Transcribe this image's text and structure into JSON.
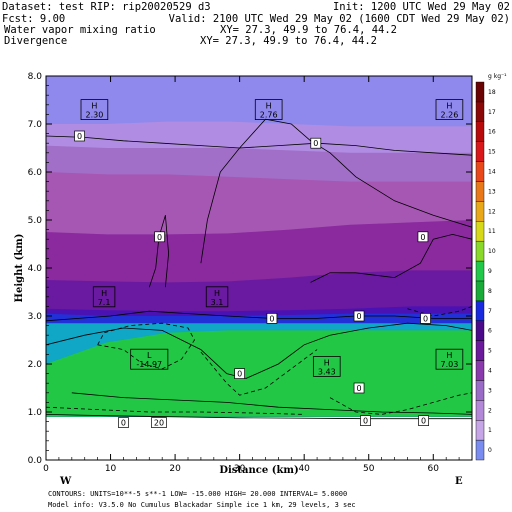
{
  "header": {
    "dataset": "Dataset: test   RIP: rip20020529 d3",
    "init": "Init: 1200 UTC Wed 29 May 02",
    "fcst": "Fcst:     9.00",
    "valid": "Valid: 2100 UTC Wed 29 May 02 (1600 CDT Wed 29 May 02)",
    "field1": "Water vapor mixing ratio",
    "field1_xy": "XY=  27.3, 49.9 to  76.4, 44.2",
    "field2": "Divergence",
    "field2_xy": "XY=  27.3, 49.9 to  76.4, 44.2"
  },
  "footer": {
    "line1": "CONTOURS:  UNITS=10**-5 s**-1   LOW= -15.000       HIGH=  20.000      INTERVAL=   5.0000",
    "line2": "Model info: V3.5.0 No Cumulus Blackadar  Simple ice    1 km,  29 levels,    3 sec"
  },
  "chart_data": {
    "type": "contour-cross-section",
    "xlabel": "Distance (km)",
    "ylabel": "Height (km)",
    "xlim": [
      0,
      66
    ],
    "ylim": [
      0,
      8
    ],
    "x_ticks": [
      "0",
      "10",
      "20",
      "30",
      "40",
      "50",
      "60"
    ],
    "y_ticks": [
      "0.0",
      "1.0",
      "2.0",
      "3.0",
      "4.0",
      "5.0",
      "6.0",
      "7.0",
      "8.0"
    ],
    "west_label": "W",
    "east_label": "E",
    "ground_height": 0.9,
    "colorbar": {
      "unit": "g kg⁻¹",
      "levels": [
        "0",
        "1",
        "2",
        "3",
        "4",
        "5",
        "6",
        "7",
        "8",
        "9",
        "10",
        "11",
        "12",
        "13",
        "14",
        "15",
        "16",
        "17",
        "18"
      ],
      "colors": [
        "#7b8cf0",
        "#c6a6e6",
        "#b488d8",
        "#9a6cc8",
        "#8a3aac",
        "#6a1a9a",
        "#4a0a8a",
        "#1a2ade",
        "#1aaa3a",
        "#22c84a",
        "#8ad82a",
        "#d8d81a",
        "#e8a81a",
        "#e8781a",
        "#e8481a",
        "#d8181a",
        "#b80a0a",
        "#8a0808",
        "#6a0404"
      ]
    },
    "bands": [
      {
        "level": "0",
        "color": "#8f89ee",
        "top": [
          8,
          8,
          8,
          8,
          8,
          8,
          8,
          8
        ]
      },
      {
        "level": "1",
        "color": "#b08de2",
        "top": [
          7.0,
          7.0,
          7.05,
          7.05,
          7.0,
          6.95,
          6.95,
          6.95
        ]
      },
      {
        "level": "2",
        "color": "#a16fc8",
        "top": [
          6.55,
          6.5,
          6.5,
          6.5,
          6.45,
          6.4,
          6.4,
          6.4
        ]
      },
      {
        "level": "3",
        "color": "#a657b3",
        "top": [
          6.0,
          5.95,
          5.95,
          5.9,
          5.85,
          5.8,
          5.8,
          5.8
        ]
      },
      {
        "level": "4",
        "color": "#8a2a9e",
        "top": [
          4.75,
          4.7,
          4.7,
          4.72,
          4.8,
          4.9,
          4.95,
          5.0
        ]
      },
      {
        "level": "5",
        "color": "#6a1aa0",
        "top": [
          3.75,
          3.72,
          3.7,
          3.72,
          3.8,
          3.9,
          3.95,
          3.95
        ]
      },
      {
        "level": "6",
        "color": "#4a12b2",
        "top": [
          3.15,
          3.12,
          3.1,
          3.1,
          3.12,
          3.15,
          3.2,
          3.2
        ]
      },
      {
        "level": "7",
        "color": "#2230d8",
        "top": [
          3.05,
          3.0,
          3.0,
          3.0,
          3.02,
          3.05,
          3.05,
          3.05
        ]
      },
      {
        "level": "8",
        "color": "#10a6c6",
        "top": [
          2.85,
          2.85,
          2.85,
          2.85,
          2.85,
          2.85,
          2.85,
          2.85
        ]
      },
      {
        "level": "9",
        "color": "#22c845",
        "top": [
          2.0,
          2.45,
          2.65,
          2.7,
          2.7,
          2.7,
          2.7,
          2.7
        ]
      }
    ],
    "highs_lows": [
      {
        "kind": "H",
        "value": "2.30",
        "x": 7.5,
        "y": 7.3
      },
      {
        "kind": "H",
        "value": "2.76",
        "x": 34.5,
        "y": 7.3
      },
      {
        "kind": "H",
        "value": "2.26",
        "x": 62.5,
        "y": 7.3
      },
      {
        "kind": "H",
        "value": "7.1",
        "x": 9.0,
        "y": 3.4
      },
      {
        "kind": "H",
        "value": "3.1",
        "x": 26.5,
        "y": 3.4
      },
      {
        "kind": "L",
        "value": "-14.97",
        "x": 16.0,
        "y": 2.1
      },
      {
        "kind": "H",
        "value": "3.43",
        "x": 43.5,
        "y": 1.95
      },
      {
        "kind": "H",
        "value": "7.03",
        "x": 62.5,
        "y": 2.1
      }
    ],
    "contour_labels": [
      {
        "text": "0",
        "x": 5.2,
        "y": 6.75
      },
      {
        "text": "0",
        "x": 41.8,
        "y": 6.6
      },
      {
        "text": "0",
        "x": 17.6,
        "y": 4.65
      },
      {
        "text": "0",
        "x": 58.4,
        "y": 4.65
      },
      {
        "text": "0",
        "x": 35.0,
        "y": 2.95
      },
      {
        "text": "0",
        "x": 48.5,
        "y": 3.0
      },
      {
        "text": "0",
        "x": 58.8,
        "y": 2.95
      },
      {
        "text": "0",
        "x": 30.0,
        "y": 1.8
      },
      {
        "text": "0",
        "x": 48.5,
        "y": 1.5
      },
      {
        "text": "0",
        "x": 12.0,
        "y": 0.78
      },
      {
        "text": "20",
        "x": 17.5,
        "y": 0.78
      },
      {
        "text": "0",
        "x": 49.5,
        "y": 0.82
      },
      {
        "text": "0",
        "x": 58.5,
        "y": 0.82
      }
    ],
    "contours": [
      {
        "style": "solid",
        "points": [
          [
            0,
            6.75
          ],
          [
            6,
            6.72
          ],
          [
            12,
            6.65
          ],
          [
            18,
            6.6
          ],
          [
            24,
            6.55
          ],
          [
            30,
            6.5
          ],
          [
            36,
            6.55
          ],
          [
            42,
            6.6
          ],
          [
            48,
            6.55
          ],
          [
            54,
            6.45
          ],
          [
            60,
            6.4
          ],
          [
            66,
            6.35
          ]
        ]
      },
      {
        "style": "solid",
        "points": [
          [
            24,
            4.1
          ],
          [
            25,
            5.0
          ],
          [
            27,
            6.0
          ],
          [
            30,
            6.5
          ],
          [
            34,
            7.1
          ],
          [
            38,
            7.0
          ],
          [
            41,
            6.65
          ],
          [
            44,
            6.4
          ],
          [
            48,
            5.9
          ],
          [
            54,
            5.4
          ],
          [
            60,
            5.1
          ],
          [
            66,
            4.85
          ]
        ]
      },
      {
        "style": "solid",
        "points": [
          [
            16,
            3.6
          ],
          [
            17,
            4.0
          ],
          [
            17.5,
            4.65
          ],
          [
            18.5,
            5.1
          ],
          [
            19,
            4.3
          ],
          [
            18.5,
            3.6
          ]
        ]
      },
      {
        "style": "solid",
        "points": [
          [
            41,
            3.7
          ],
          [
            44,
            3.9
          ],
          [
            48,
            3.9
          ],
          [
            54,
            3.8
          ],
          [
            58,
            4.1
          ],
          [
            60,
            4.6
          ],
          [
            63,
            4.7
          ],
          [
            66,
            4.6
          ]
        ]
      },
      {
        "style": "solid",
        "points": [
          [
            0,
            2.9
          ],
          [
            5,
            2.95
          ],
          [
            10,
            3.0
          ],
          [
            16,
            3.1
          ],
          [
            22,
            3.05
          ],
          [
            28,
            3.0
          ],
          [
            35,
            2.95
          ],
          [
            42,
            2.95
          ],
          [
            48,
            3.0
          ],
          [
            54,
            3.0
          ],
          [
            60,
            2.95
          ],
          [
            66,
            2.95
          ]
        ]
      },
      {
        "style": "solid",
        "points": [
          [
            0,
            2.4
          ],
          [
            6,
            2.6
          ],
          [
            12,
            2.75
          ],
          [
            18,
            2.7
          ],
          [
            24,
            2.3
          ],
          [
            28,
            1.8
          ],
          [
            31,
            1.7
          ],
          [
            36,
            2.0
          ],
          [
            40,
            2.4
          ],
          [
            44,
            2.6
          ],
          [
            50,
            2.75
          ],
          [
            56,
            2.85
          ],
          [
            62,
            2.8
          ],
          [
            66,
            2.7
          ]
        ]
      },
      {
        "style": "solid",
        "points": [
          [
            0,
            0.95
          ],
          [
            10,
            0.92
          ],
          [
            20,
            0.9
          ],
          [
            30,
            0.88
          ],
          [
            40,
            0.87
          ],
          [
            50,
            0.86
          ],
          [
            60,
            0.86
          ],
          [
            66,
            0.86
          ]
        ]
      },
      {
        "style": "solid",
        "points": [
          [
            4,
            1.4
          ],
          [
            12,
            1.3
          ],
          [
            20,
            1.25
          ],
          [
            28,
            1.2
          ],
          [
            36,
            1.1
          ],
          [
            44,
            1.05
          ],
          [
            52,
            1.0
          ],
          [
            60,
            0.98
          ],
          [
            66,
            0.95
          ]
        ]
      },
      {
        "style": "dashed",
        "points": [
          [
            8,
            2.4
          ],
          [
            12,
            2.3
          ],
          [
            15,
            2.0
          ],
          [
            18,
            1.9
          ],
          [
            21,
            2.1
          ],
          [
            23,
            2.5
          ],
          [
            22,
            2.75
          ],
          [
            18,
            2.85
          ],
          [
            13,
            2.8
          ],
          [
            9,
            2.65
          ],
          [
            8,
            2.4
          ]
        ]
      },
      {
        "style": "dashed",
        "points": [
          [
            24,
            2.25
          ],
          [
            28,
            1.6
          ],
          [
            30,
            1.35
          ],
          [
            34,
            1.5
          ],
          [
            38,
            1.9
          ],
          [
            42,
            2.3
          ]
        ]
      },
      {
        "style": "dashed",
        "points": [
          [
            44,
            1.3
          ],
          [
            48,
            1.0
          ],
          [
            52,
            0.95
          ],
          [
            56,
            1.05
          ],
          [
            60,
            1.2
          ],
          [
            64,
            1.35
          ],
          [
            66,
            1.4
          ]
        ]
      },
      {
        "style": "dashed",
        "points": [
          [
            0,
            1.1
          ],
          [
            8,
            1.05
          ],
          [
            16,
            1.0
          ],
          [
            24,
            1.0
          ],
          [
            32,
            0.98
          ],
          [
            40,
            0.95
          ]
        ]
      },
      {
        "style": "dashed",
        "points": [
          [
            56,
            3.15
          ],
          [
            60,
            3.0
          ],
          [
            64,
            3.1
          ],
          [
            66,
            3.2
          ]
        ]
      }
    ]
  }
}
